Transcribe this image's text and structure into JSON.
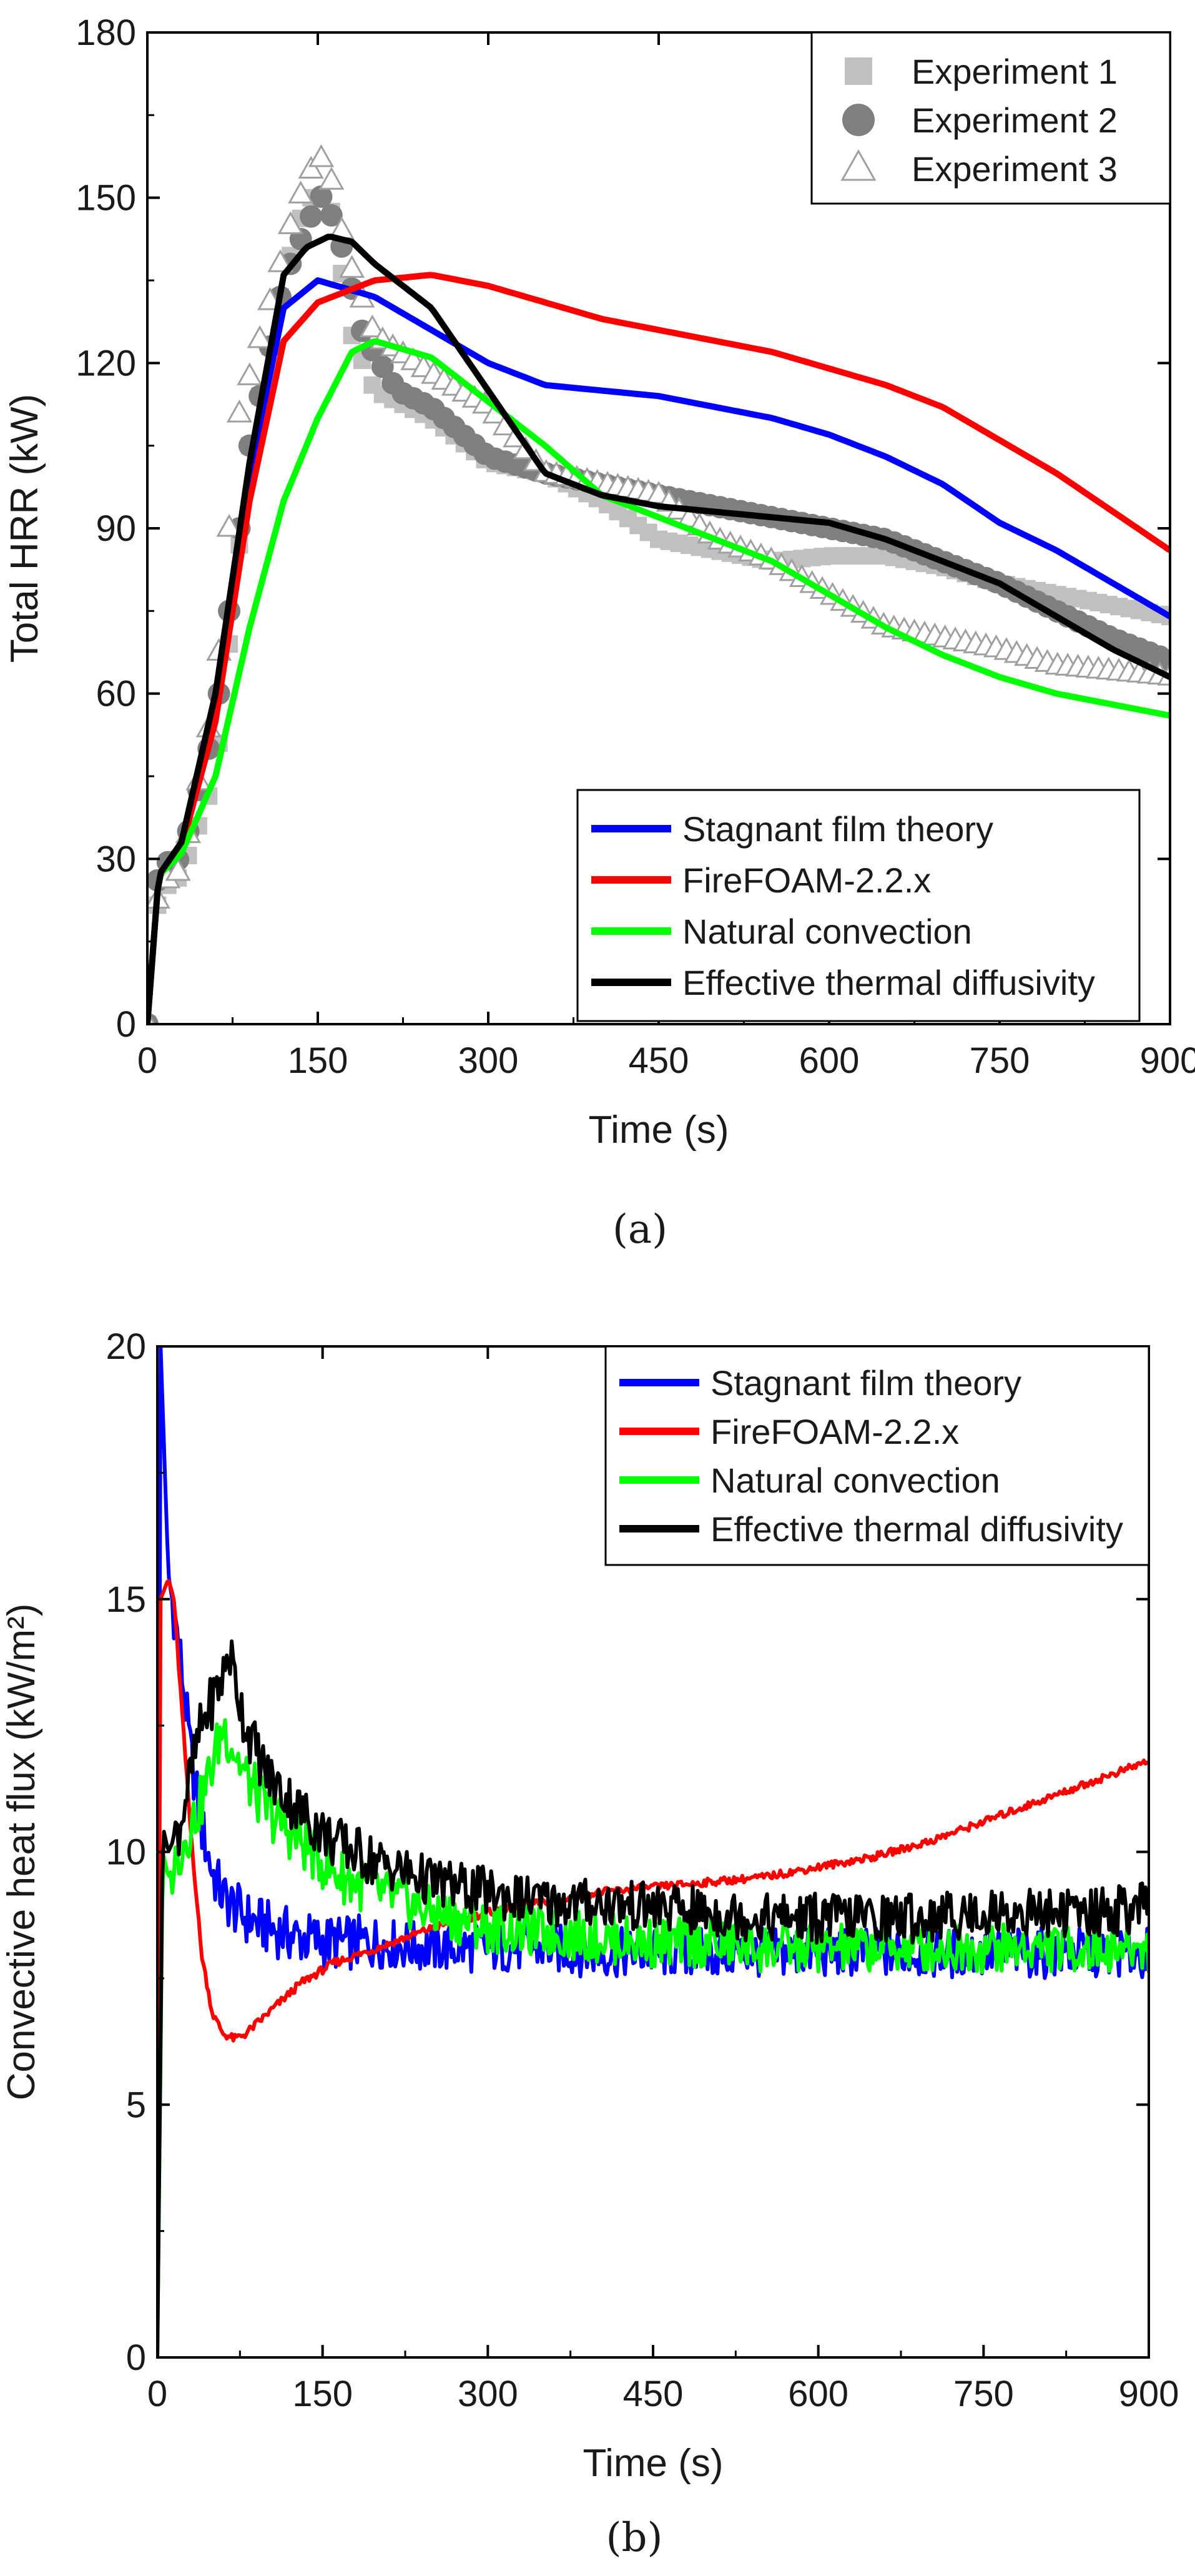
{
  "chart_data": [
    {
      "type": "line",
      "panel_label": "(a)",
      "xlabel": "Time (s)",
      "ylabel": "Total HRR (kW)",
      "xlim": [
        0,
        900
      ],
      "ylim": [
        0,
        180
      ],
      "xticks": [
        0,
        150,
        300,
        450,
        600,
        750,
        900
      ],
      "yticks": [
        0,
        30,
        60,
        90,
        120,
        150,
        180
      ],
      "grid": false,
      "experiments_legend_position": "top-right",
      "series_legend_position": "bottom-right",
      "experiments": [
        {
          "name": "Experiment 1",
          "marker": "square",
          "color": "#c0c0c0",
          "x": [
            0,
            10,
            30,
            60,
            90,
            120,
            140,
            160,
            180,
            200,
            250,
            300,
            350,
            400,
            450,
            500,
            550,
            600,
            650,
            700,
            750,
            800,
            850,
            900
          ],
          "y": [
            0,
            24,
            27,
            45,
            105,
            135,
            150,
            150,
            125,
            115,
            110,
            102,
            100,
            95,
            88,
            86,
            84,
            85,
            85,
            83,
            80,
            78,
            76,
            74
          ]
        },
        {
          "name": "Experiment 2",
          "marker": "circle",
          "color": "#7f7f7f",
          "x": [
            0,
            10,
            30,
            60,
            90,
            120,
            140,
            155,
            170,
            190,
            220,
            250,
            300,
            350,
            400,
            450,
            500,
            550,
            600,
            650,
            700,
            750,
            800,
            850,
            900
          ],
          "y": [
            0,
            29,
            30,
            55,
            105,
            135,
            145,
            151,
            142,
            125,
            115,
            112,
            103,
            100,
            98,
            96,
            94,
            92,
            90,
            88,
            84,
            80,
            75,
            70,
            66
          ]
        },
        {
          "name": "Experiment 3",
          "marker": "triangle",
          "color": "#a0a0a0",
          "x": [
            0,
            10,
            30,
            60,
            80,
            100,
            130,
            150,
            160,
            175,
            200,
            250,
            300,
            350,
            400,
            450,
            500,
            550,
            600,
            650,
            700,
            750,
            800,
            850,
            900
          ],
          "y": [
            0,
            25,
            28,
            60,
            110,
            125,
            148,
            158,
            155,
            140,
            125,
            118,
            112,
            100,
            98,
            96,
            88,
            84,
            78,
            72,
            70,
            68,
            65,
            64,
            63
          ]
        }
      ],
      "series": [
        {
          "name": "Stagnant film theory",
          "color": "#0000ff",
          "x": [
            0,
            10,
            30,
            60,
            90,
            120,
            150,
            200,
            250,
            300,
            350,
            400,
            450,
            500,
            550,
            600,
            650,
            700,
            750,
            800,
            850,
            900
          ],
          "y": [
            0,
            27,
            33,
            60,
            100,
            130,
            135,
            132,
            126,
            120,
            116,
            115,
            114,
            112,
            110,
            107,
            103,
            98,
            91,
            86,
            80,
            74
          ]
        },
        {
          "name": "FireFOAM-2.2.x",
          "color": "#ff0000",
          "x": [
            0,
            10,
            30,
            60,
            90,
            120,
            150,
            200,
            250,
            300,
            350,
            400,
            450,
            500,
            550,
            600,
            650,
            700,
            750,
            800,
            850,
            900
          ],
          "y": [
            0,
            27,
            32,
            55,
            95,
            124,
            131,
            135,
            136,
            134,
            131,
            128,
            126,
            124,
            122,
            119,
            116,
            112,
            106,
            100,
            93,
            86
          ]
        },
        {
          "name": "Natural convection",
          "color": "#00ff00",
          "x": [
            0,
            10,
            30,
            60,
            90,
            120,
            150,
            180,
            200,
            250,
            300,
            350,
            400,
            450,
            500,
            550,
            600,
            650,
            700,
            750,
            800,
            850,
            900
          ],
          "y": [
            0,
            27,
            31,
            45,
            72,
            95,
            110,
            122,
            124,
            121,
            113,
            105,
            96,
            92,
            88,
            84,
            78,
            72,
            67,
            63,
            60,
            58,
            56
          ]
        },
        {
          "name": "Effective thermal diffusivity",
          "color": "#000000",
          "x": [
            0,
            10,
            30,
            60,
            90,
            120,
            140,
            160,
            180,
            200,
            250,
            300,
            350,
            400,
            450,
            500,
            550,
            600,
            650,
            700,
            750,
            800,
            850,
            900
          ],
          "y": [
            0,
            27,
            33,
            60,
            102,
            136,
            141,
            143,
            142,
            138,
            130,
            115,
            100,
            96,
            94,
            93,
            92,
            91,
            88,
            84,
            80,
            74,
            68,
            63
          ]
        }
      ]
    },
    {
      "type": "line",
      "panel_label": "(b)",
      "xlabel": "Time (s)",
      "ylabel": "Convective heat flux (kW/m²)",
      "xlim": [
        0,
        900
      ],
      "ylim": [
        0,
        20
      ],
      "xticks": [
        0,
        150,
        300,
        450,
        600,
        750,
        900
      ],
      "yticks": [
        0,
        5,
        10,
        15,
        20
      ],
      "grid": false,
      "legend_position": "top-right",
      "series": [
        {
          "name": "Stagnant film theory",
          "color": "#0000ff",
          "x": [
            0,
            3,
            10,
            20,
            30,
            40,
            50,
            60,
            80,
            100,
            130,
            160,
            200,
            250,
            300,
            350,
            400,
            450,
            500,
            550,
            600,
            650,
            700,
            750,
            800,
            850,
            900
          ],
          "y": [
            0,
            20,
            15.5,
            14.0,
            12.0,
            10.5,
            9.6,
            9.1,
            8.7,
            8.5,
            8.3,
            8.2,
            8.2,
            8.1,
            8.1,
            8.1,
            8.0,
            8.0,
            8.0,
            8.0,
            8.0,
            8.0,
            8.0,
            8.0,
            8.0,
            8.0,
            8.0
          ]
        },
        {
          "name": "FireFOAM-2.2.x",
          "color": "#ff0000",
          "x": [
            0,
            3,
            10,
            15,
            20,
            30,
            40,
            50,
            60,
            70,
            80,
            100,
            130,
            160,
            200,
            250,
            300,
            350,
            400,
            450,
            500,
            550,
            600,
            650,
            700,
            750,
            800,
            850,
            900
          ],
          "y": [
            0,
            15,
            15.4,
            15.0,
            13.5,
            10.5,
            8.0,
            6.8,
            6.4,
            6.3,
            6.4,
            6.8,
            7.4,
            7.8,
            8.1,
            8.5,
            8.8,
            9.0,
            9.2,
            9.3,
            9.4,
            9.5,
            9.7,
            9.9,
            10.2,
            10.6,
            11.0,
            11.4,
            11.8
          ]
        },
        {
          "name": "Natural convection",
          "color": "#00ff00",
          "x": [
            0,
            5,
            10,
            20,
            40,
            60,
            70,
            80,
            100,
            130,
            160,
            200,
            250,
            300,
            350,
            400,
            450,
            500,
            550,
            600,
            650,
            700,
            750,
            800,
            850,
            900
          ],
          "y": [
            0,
            10.0,
            9.5,
            10.0,
            11.0,
            12.5,
            12.0,
            11.5,
            10.8,
            10.2,
            9.6,
            9.2,
            8.8,
            8.5,
            8.4,
            8.3,
            8.2,
            8.2,
            8.1,
            8.1,
            8.1,
            8.1,
            8.1,
            8.1,
            8.1,
            8.1
          ]
        },
        {
          "name": "Effective thermal diffusivity",
          "color": "#000000",
          "x": [
            0,
            5,
            10,
            20,
            40,
            60,
            65,
            80,
            100,
            130,
            160,
            200,
            250,
            300,
            350,
            400,
            450,
            500,
            550,
            600,
            650,
            700,
            750,
            800,
            850,
            900
          ],
          "y": [
            0,
            10.5,
            10.0,
            10.5,
            12.5,
            13.5,
            14.0,
            12.5,
            11.5,
            10.8,
            10.2,
            9.8,
            9.4,
            9.2,
            9.0,
            9.0,
            8.9,
            8.8,
            8.7,
            8.7,
            8.7,
            8.7,
            8.8,
            8.8,
            8.8,
            8.9
          ]
        }
      ]
    }
  ]
}
